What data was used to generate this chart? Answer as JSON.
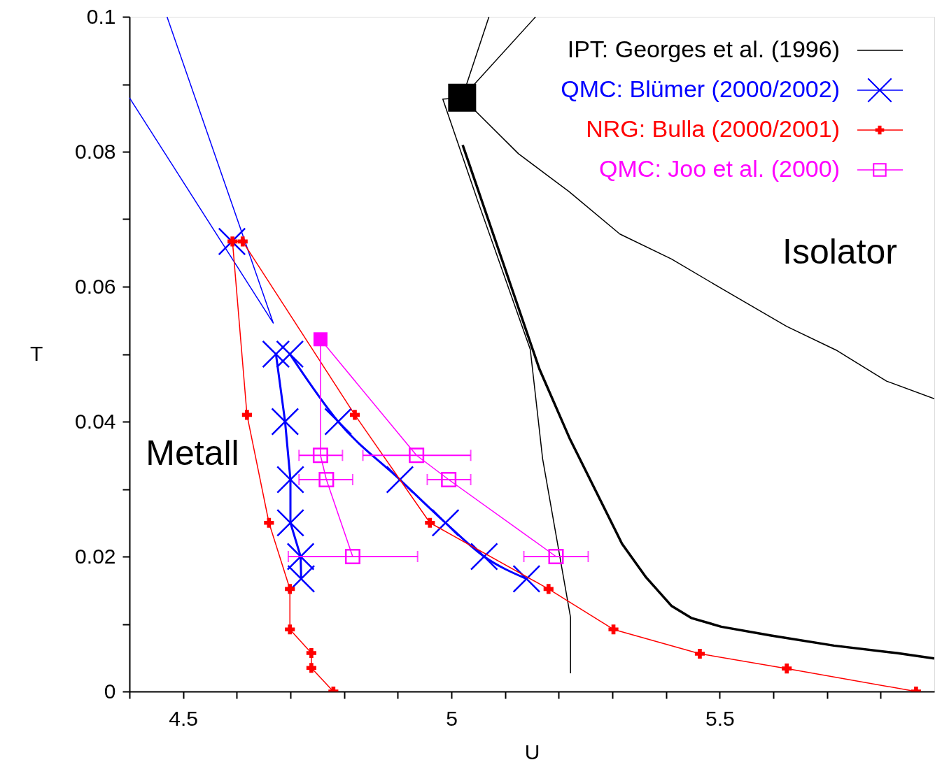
{
  "chart_data": {
    "type": "line",
    "xlabel": "U",
    "ylabel": "T",
    "xlim": [
      4.4,
      5.9
    ],
    "ylim": [
      0,
      0.1
    ],
    "xticks": [
      {
        "value": 4.4,
        "label": null
      },
      4.5,
      {
        "value": 4.6,
        "label": null
      },
      {
        "value": 4.7,
        "label": null
      },
      {
        "value": 4.8,
        "label": null
      },
      {
        "value": 4.9,
        "label": null
      },
      5,
      {
        "value": 5.1,
        "label": null
      },
      {
        "value": 5.2,
        "label": null
      },
      {
        "value": 5.3,
        "label": null
      },
      {
        "value": 5.4,
        "label": null
      },
      5.5,
      {
        "value": 5.6,
        "label": null
      },
      {
        "value": 5.7,
        "label": null
      },
      {
        "value": 5.8,
        "label": null
      }
    ],
    "yticks": [
      0,
      {
        "value": 0.01,
        "label": null
      },
      0.02,
      {
        "value": 0.03,
        "label": null
      },
      0.04,
      {
        "value": 0.05,
        "label": null
      },
      0.06,
      {
        "value": 0.07,
        "label": null
      },
      0.08,
      {
        "value": 0.09,
        "label": null
      },
      0.1
    ],
    "grid": false,
    "legend": "top right",
    "annotations": [
      "Metall",
      "Isolator"
    ],
    "series": [
      {
        "type": "scatter",
        "color": "#000000",
        "marker": "square",
        "x": [
          5.02
        ],
        "values": [
          0.088
        ]
      },
      {
        "name": "IPT: Georges et al. (1996)",
        "color": "#000000",
        "marker": "none",
        "x": [
          5.07,
          5.02,
          4.984,
          5.05,
          5.147,
          5.17,
          5.222,
          5.222
        ],
        "values": [
          0.1,
          0.088,
          0.0878,
          0.0725,
          0.0507,
          0.0345,
          0.011,
          0.0027
        ]
      },
      {
        "color": "#000000",
        "marker": "none",
        "x": [
          5.157,
          5.02,
          5.125,
          5.219,
          5.314,
          5.41,
          5.504,
          5.625,
          5.717,
          5.811,
          5.9
        ],
        "values": [
          0.1,
          0.088,
          0.0797,
          0.0741,
          0.0678,
          0.0641,
          0.0597,
          0.0541,
          0.0506,
          0.046,
          0.0434
        ]
      },
      {
        "color": "#000000",
        "marker": "none",
        "x": [
          5.021,
          5.102,
          5.164,
          5.221,
          5.318,
          5.363,
          5.41,
          5.447,
          5.503,
          5.596,
          5.713,
          5.83,
          5.9
        ],
        "values": [
          0.081,
          0.0622,
          0.0478,
          0.0374,
          0.0219,
          0.0169,
          0.0127,
          0.0109,
          0.0096,
          0.0083,
          0.0068,
          0.0057,
          0.0049
        ]
      },
      {
        "type": "scatter",
        "color": "#0000ff",
        "marker": "cross",
        "x": [
          4.591
        ],
        "values": [
          0.0667
        ]
      },
      {
        "color": "#0000ff",
        "marker": "none",
        "x": [
          4.47,
          4.668,
          4.4
        ],
        "values": [
          0.1,
          0.0546,
          0.088
        ]
      },
      {
        "name": "QMC: Blümer (2000/2002)",
        "color": "#0000ff",
        "marker": "cross",
        "x": [
          4.673,
          4.69,
          4.7,
          4.7,
          4.719,
          4.72
        ],
        "values": [
          0.05,
          0.04,
          0.0314,
          0.025,
          0.02,
          0.0167
        ]
      },
      {
        "color": "#0000ff",
        "marker": "cross",
        "x": [
          4.699,
          4.789,
          4.904,
          4.989,
          5.061,
          5.14
        ],
        "values": [
          0.05,
          0.04,
          0.0314,
          0.025,
          0.02,
          0.0167
        ]
      },
      {
        "name": "NRG: Bulla (2000/2001)",
        "color": "#ff0000",
        "marker": "cross",
        "x": [
          4.78,
          4.739,
          4.739,
          4.699,
          4.699,
          4.66,
          4.619,
          4.592,
          4.611,
          4.82,
          4.96,
          5.181,
          5.302,
          5.463,
          5.625,
          5.866
        ],
        "values": [
          0,
          0.0035,
          0.0057,
          0.0092,
          0.0152,
          0.025,
          0.041,
          0.0667,
          0.0667,
          0.041,
          0.025,
          0.0152,
          0.0092,
          0.0056,
          0.0034,
          0
        ]
      },
      {
        "name": "QMC: Joo et al. (2000)",
        "type": "scatter",
        "color": "#ff00ff",
        "marker": "square",
        "x": [
          4.756,
          4.767,
          4.816,
          4.935,
          4.995,
          5.195
        ],
        "values": [
          0.035,
          0.0314,
          0.02,
          0.035,
          0.0314,
          0.02
        ],
        "xerrors": [
          [
            4.716,
            4.797
          ],
          [
            4.716,
            4.816
          ],
          [
            4.696,
            4.937
          ],
          [
            4.835,
            5.036
          ],
          [
            4.955,
            5.036
          ],
          [
            5.135,
            5.255
          ]
        ]
      },
      {
        "color": "#ff00ff",
        "marker": "none",
        "x": [
          4.816,
          4.767,
          4.756,
          4.756,
          4.935,
          4.995,
          5.195
        ],
        "values": [
          0.02,
          0.0314,
          0.035,
          0.0522,
          0.035,
          0.0314,
          0.02
        ]
      },
      {
        "type": "scatter",
        "color": "#ff00ff",
        "marker": "square",
        "x": [
          4.756
        ],
        "values": [
          0.0522
        ]
      }
    ]
  }
}
